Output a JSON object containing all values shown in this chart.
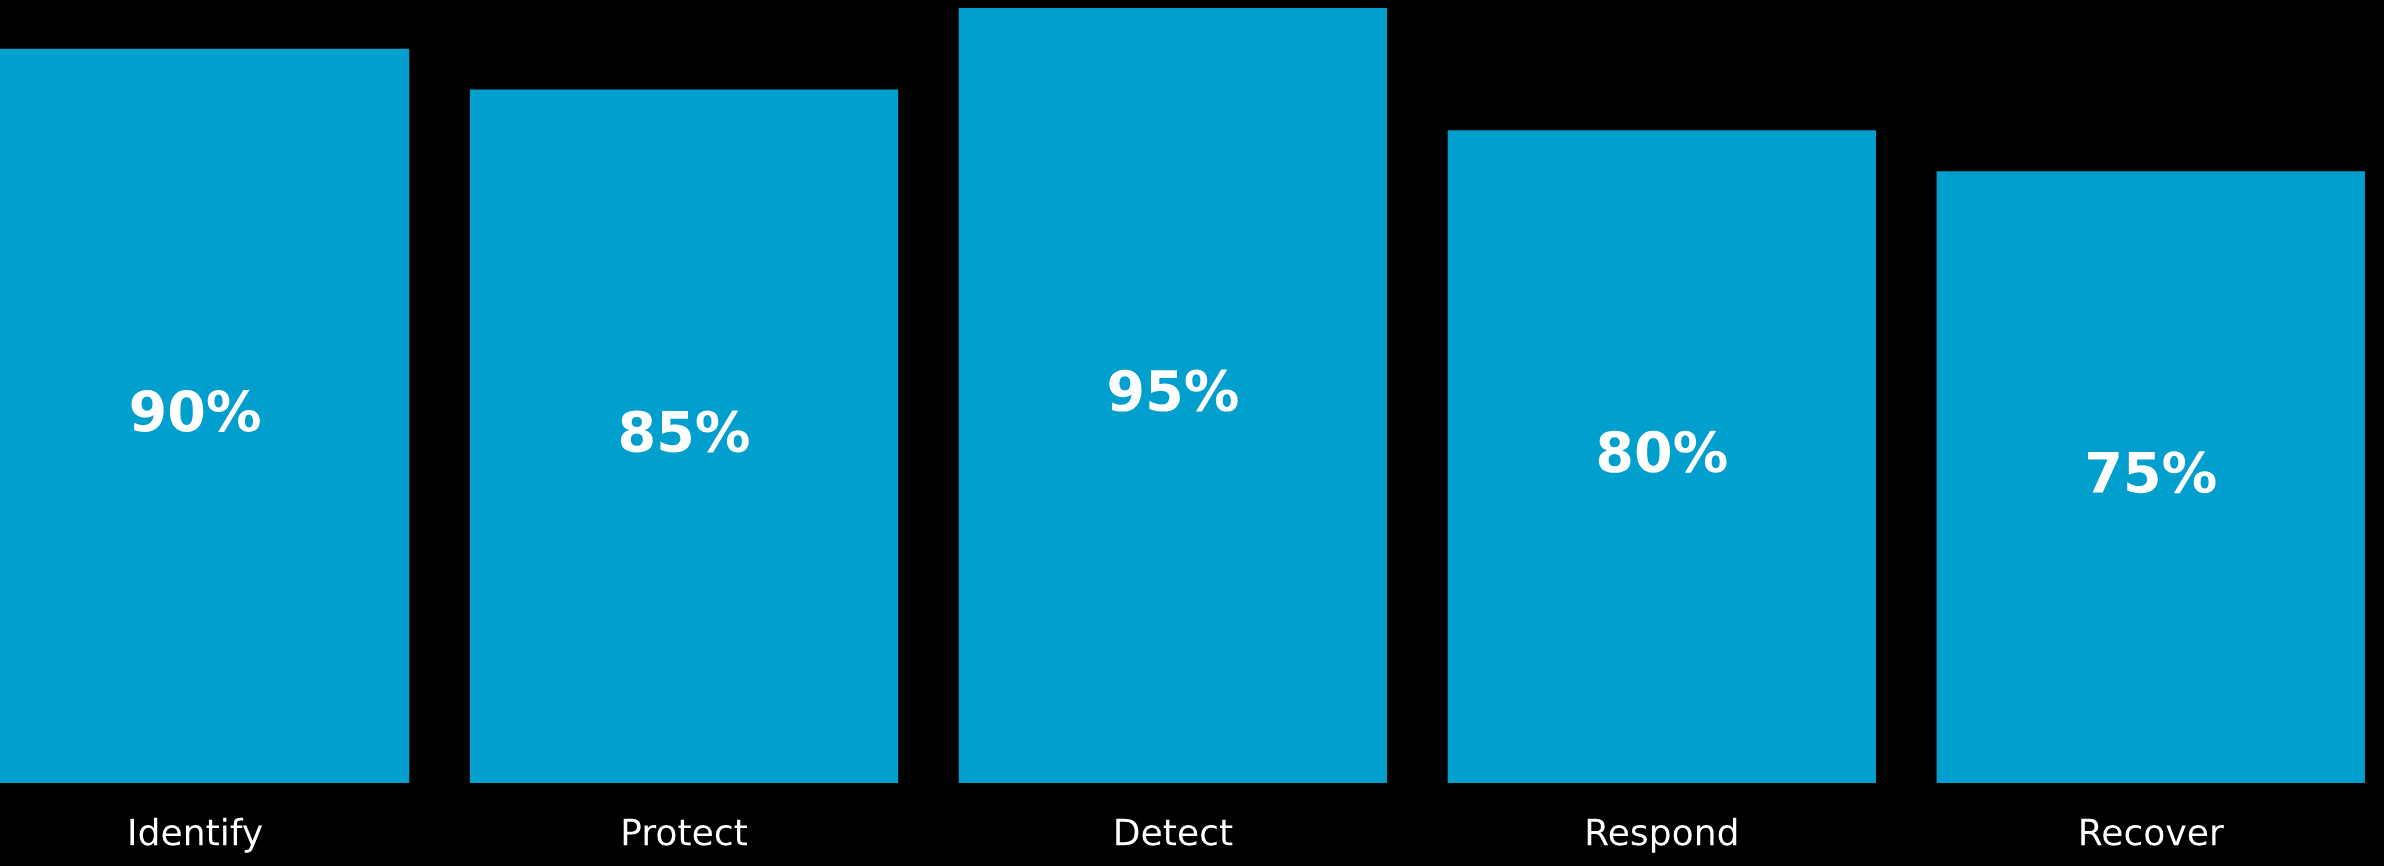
{
  "chart_data": {
    "type": "bar",
    "categories": [
      "Identify",
      "Protect",
      "Detect",
      "Respond",
      "Recover"
    ],
    "values": [
      90,
      85,
      95,
      80,
      75
    ],
    "value_labels": [
      "90%",
      "85%",
      "95%",
      "80%",
      "75%"
    ],
    "color": "#009fce",
    "ylim": [
      0,
      95
    ],
    "tick_labels": "x",
    "grid": false,
    "legend": false
  }
}
